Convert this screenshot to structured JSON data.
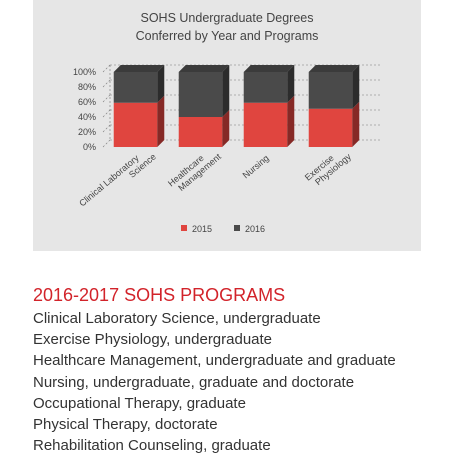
{
  "chart_data": {
    "type": "bar",
    "stacked": true,
    "three_d": true,
    "title": "SOHS Undergraduate Degrees",
    "subtitle": "Conferred by Year and Programs",
    "categories": [
      "Clinical Laboratory Science",
      "Healthcare Management",
      "Nursing",
      "Exercise Physiology"
    ],
    "series": [
      {
        "name": "2015",
        "color": "#e0453f",
        "values": [
          59,
          40,
          59,
          51
        ]
      },
      {
        "name": "2016",
        "color": "#4a4a4a",
        "values": [
          41,
          60,
          41,
          49
        ]
      }
    ],
    "ytick_labels": [
      "100%",
      "80%",
      "60%",
      "40%",
      "20%",
      "0%"
    ],
    "ylim": [
      0,
      100
    ],
    "legend": "bottom",
    "grid": true
  },
  "programs_section": {
    "heading": "2016-2017 SOHS PROGRAMS",
    "items": [
      "Clinical Laboratory Science, undergraduate",
      "Exercise Physiology, undergraduate",
      "Healthcare Management, undergraduate and graduate",
      "Nursing, undergraduate, graduate and doctorate",
      "Occupational Therapy, graduate",
      "Physical Therapy, doctorate",
      "Rehabilitation Counseling, graduate"
    ]
  }
}
